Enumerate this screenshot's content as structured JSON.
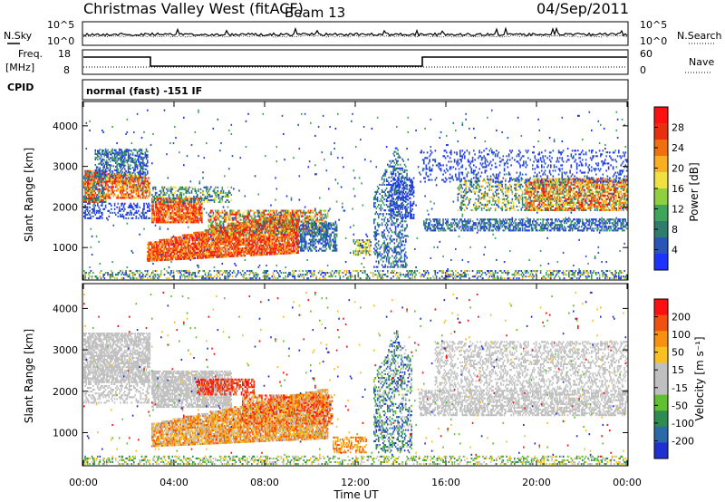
{
  "header": {
    "station": "Christmas Valley West (fitACF)",
    "beam": "Beam 13",
    "date": "04/Sep/2011"
  },
  "top_panels": {
    "nsky_label": "N.Sky",
    "nsearch_label": "N.Search",
    "noise_ticks": [
      "10^5",
      "10^0"
    ],
    "freq_label": "Freq.",
    "freq_unit": "[MHz]",
    "freq_ticks": [
      "18",
      "8"
    ],
    "nave_label": "Nave",
    "nave_ticks": [
      "60",
      "0"
    ],
    "cpid_label": "CPID",
    "cpid_value": "normal (fast) -151 IF"
  },
  "chart_data": [
    {
      "type": "heatmap",
      "name": "power",
      "ylabel": "Slant Range [km]",
      "xlabel": "",
      "ylim": [
        200,
        4600
      ],
      "xlim_hours": [
        0,
        24
      ],
      "y_ticks": [
        "4000",
        "3000",
        "2000",
        "1000"
      ],
      "colorbar_label": "Power [dB]",
      "colorbar_ticks": [
        "28",
        "24",
        "20",
        "16",
        "12",
        "8",
        "4"
      ],
      "colorbar_colors": [
        "#1e32ff",
        "#2a55b8",
        "#2e7d6c",
        "#3fa55a",
        "#8fd040",
        "#f0e040",
        "#f8b020",
        "#f07010",
        "#e83010",
        "#ff1010"
      ]
    },
    {
      "type": "heatmap",
      "name": "velocity",
      "ylabel": "Slant Range [km]",
      "xlabel": "Time UT",
      "ylim": [
        200,
        4600
      ],
      "xlim_hours": [
        0,
        24
      ],
      "y_ticks": [
        "4000",
        "3000",
        "2000",
        "1000"
      ],
      "x_ticks": [
        "00:00",
        "04:00",
        "08:00",
        "12:00",
        "16:00",
        "20:00",
        "00:00"
      ],
      "colorbar_label": "Velocity [m s⁻¹]",
      "colorbar_ticks": [
        "200",
        "100",
        "50",
        "15",
        "-15",
        "-50",
        "-100",
        "-200"
      ],
      "colorbar_colors": [
        "#2030d0",
        "#2a6aa8",
        "#2e8c50",
        "#60c030",
        "#c0c0c0",
        "#c0c0c0",
        "#f8c020",
        "#f89010",
        "#f05010",
        "#ff1010"
      ]
    }
  ]
}
